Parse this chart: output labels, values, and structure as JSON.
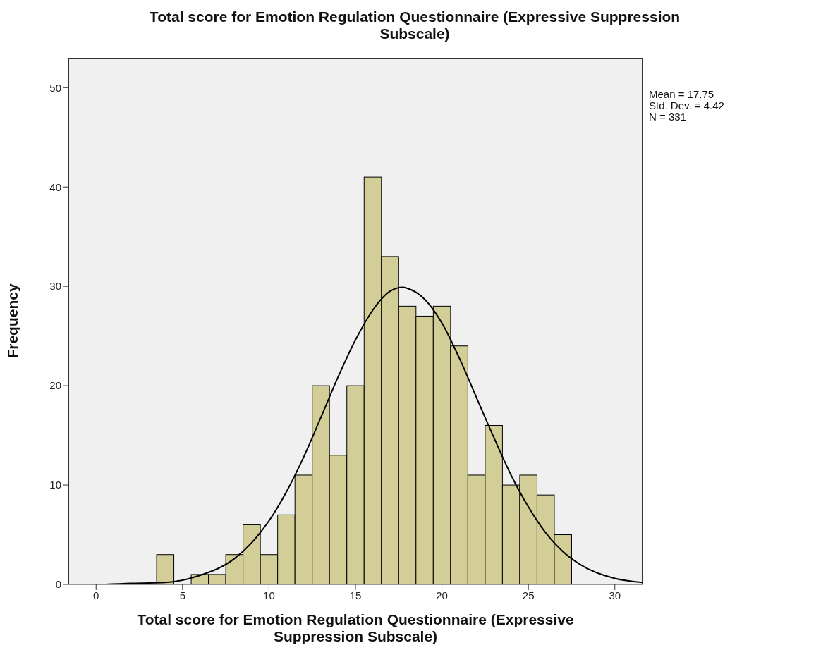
{
  "chart_data": {
    "type": "histogram",
    "title": "Total score for Emotion Regulation Questionnaire (Expressive Suppression Subscale)",
    "xlabel": "Total score for Emotion Regulation Questionnaire (Expressive Suppression Subscale)",
    "ylabel": "Frequency",
    "annotations": [
      "Mean = 17.75",
      "Std. Dev. = 4.42",
      "N = 331"
    ],
    "bins": [
      3.5,
      4.5,
      5.5,
      6.5,
      7.5,
      8.5,
      9.5,
      10.5,
      11.5,
      12.5,
      13.5,
      14.5,
      15.5,
      16.5,
      17.5,
      18.5,
      19.5,
      20.5,
      21.5,
      22.5,
      23.5,
      24.5,
      25.5,
      26.5,
      27.5
    ],
    "values": [
      3,
      0,
      1,
      1,
      3,
      6,
      3,
      7,
      11,
      20,
      13,
      20,
      41,
      33,
      28,
      27,
      28,
      24,
      11,
      16,
      10,
      11,
      9,
      5
    ],
    "color": "#d3ce97",
    "series": [
      {
        "type": "line",
        "color": "#000000",
        "x": [
          -1.6,
          0,
          2,
          4,
          6,
          8,
          9,
          10,
          11,
          12,
          13,
          14,
          15,
          16,
          17,
          17.75,
          18,
          19,
          20,
          21,
          22,
          23,
          24,
          25,
          26,
          27,
          28,
          30,
          31.6
        ],
        "values": [
          0,
          0,
          0.1,
          0.2,
          0.9,
          2.6,
          4.2,
          6.4,
          9.3,
          12.8,
          16.8,
          20.9,
          24.6,
          27.6,
          29.5,
          29.9,
          29.8,
          28.7,
          26.3,
          22.8,
          18.8,
          14.8,
          11,
          7.8,
          5.2,
          3.3,
          2,
          0.6,
          0.2
        ]
      }
    ],
    "xlim": [
      -1.6,
      31.6
    ],
    "ylim": [
      0,
      53
    ],
    "xticks": [
      0,
      5,
      10,
      15,
      20,
      25,
      30
    ],
    "yticks": [
      0,
      10,
      20,
      30,
      40,
      50
    ]
  }
}
